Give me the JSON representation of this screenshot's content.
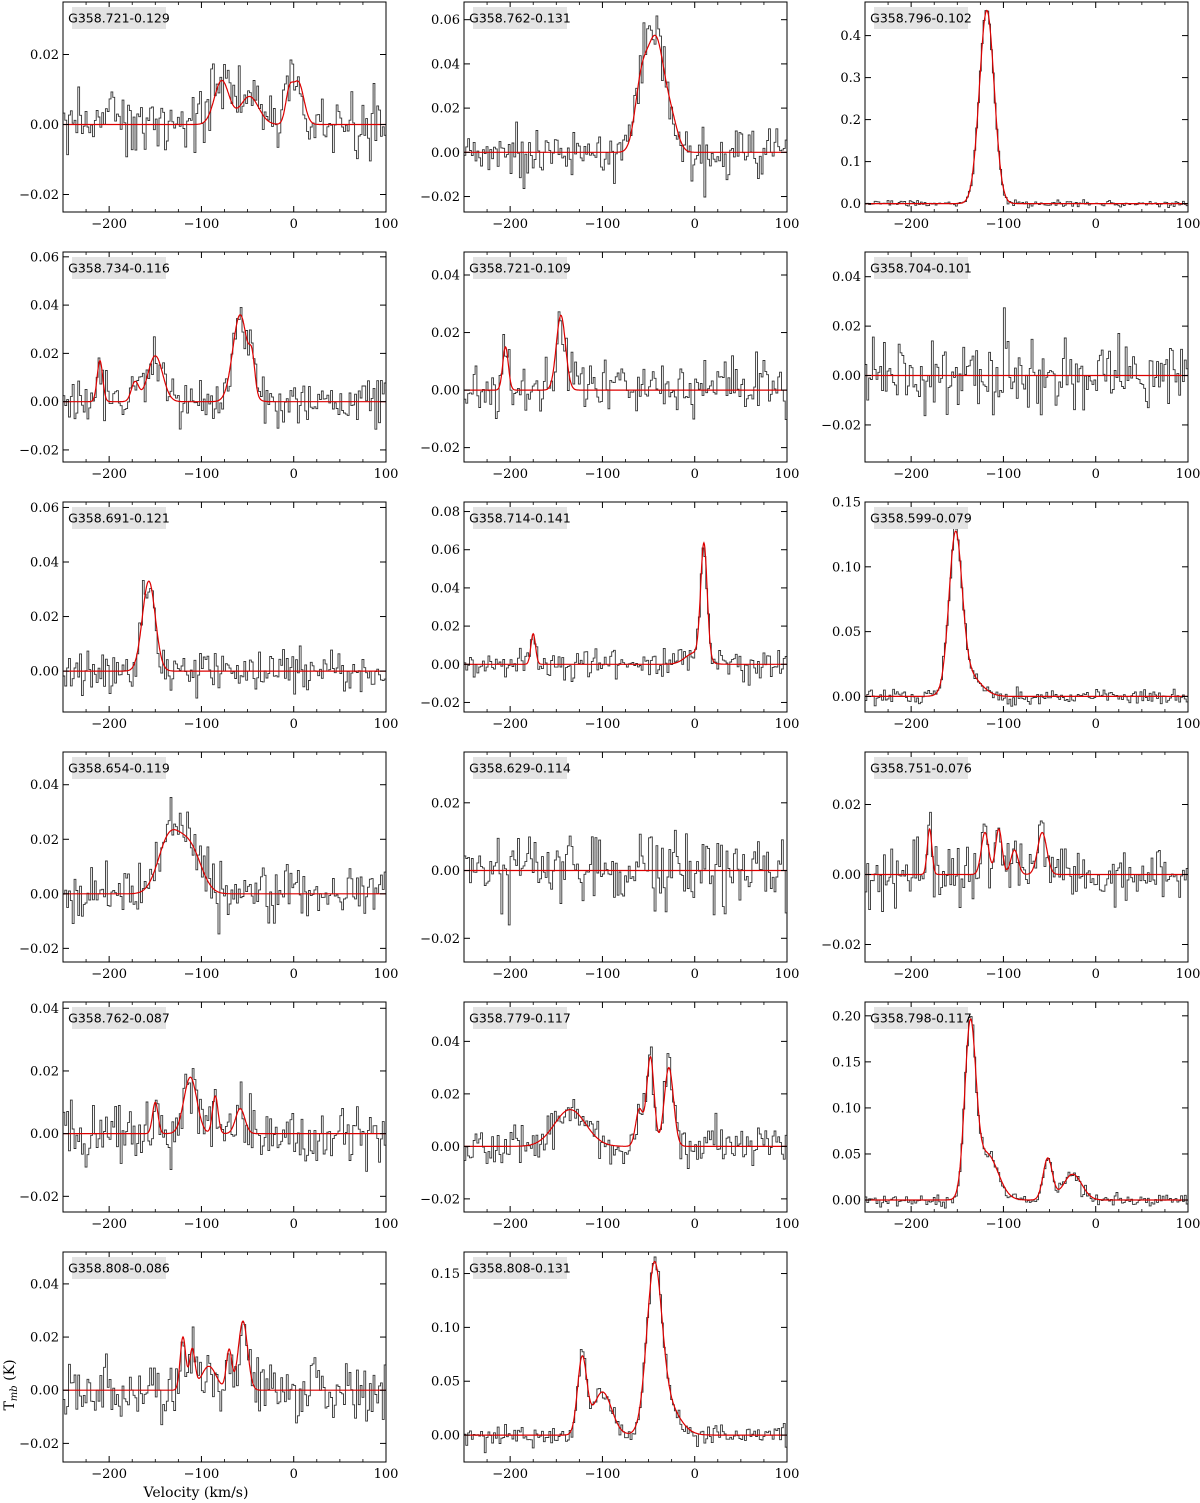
{
  "figure": {
    "xlabel": "Velocity (km/s)",
    "ylabel": "T",
    "ylabel_sub": "mb",
    "ylabel_unit": " (K)",
    "colors": {
      "observed": "#333333",
      "fit": "#dd0000",
      "label_bg": "#e3e3e3"
    }
  },
  "chart_data": [
    {
      "type": "line",
      "title": "G358.721-0.129",
      "xlim": [
        -250,
        100
      ],
      "ylim": [
        -0.025,
        0.035
      ],
      "xticks": [
        -200,
        -100,
        0,
        100
      ],
      "yticks": [
        -0.02,
        0.0,
        0.02
      ],
      "ytick_labels": [
        "−0.02",
        "0.00",
        "0.02"
      ],
      "noise": 0.0055,
      "seed": 1,
      "fit_components": [
        [
          -78,
          0.0125,
          8
        ],
        [
          -48,
          0.008,
          10
        ],
        [
          -5,
          0.008,
          4
        ],
        [
          5,
          0.012,
          6
        ]
      ]
    },
    {
      "type": "line",
      "title": "G358.762-0.131",
      "xlim": [
        -250,
        100
      ],
      "ylim": [
        -0.027,
        0.068
      ],
      "xticks": [
        -200,
        -100,
        0,
        100
      ],
      "yticks": [
        -0.02,
        0.0,
        0.02,
        0.04,
        0.06
      ],
      "ytick_labels": [
        "−0.02",
        "0.00",
        "0.02",
        "0.04",
        "0.06"
      ],
      "noise": 0.007,
      "seed": 2,
      "fit_components": [
        [
          -58,
          0.028,
          7
        ],
        [
          -42,
          0.05,
          9
        ],
        [
          -25,
          0.012,
          7
        ]
      ]
    },
    {
      "type": "line",
      "title": "G358.796-0.102",
      "xlim": [
        -250,
        100
      ],
      "ylim": [
        -0.02,
        0.48
      ],
      "xticks": [
        -200,
        -100,
        0,
        100
      ],
      "yticks": [
        0.0,
        0.1,
        0.2,
        0.3,
        0.4
      ],
      "ytick_labels": [
        "0.0",
        "0.1",
        "0.2",
        "0.3",
        "0.4"
      ],
      "noise": 0.005,
      "seed": 3,
      "fit_components": [
        [
          -118,
          0.46,
          8
        ]
      ]
    },
    {
      "type": "line",
      "title": "G358.734-0.116",
      "xlim": [
        -250,
        100
      ],
      "ylim": [
        -0.025,
        0.062
      ],
      "xticks": [
        -200,
        -100,
        0,
        100
      ],
      "yticks": [
        -0.02,
        0.0,
        0.02,
        0.04,
        0.06
      ],
      "ytick_labels": [
        "−0.02",
        "0.00",
        "0.02",
        "0.04",
        "0.06"
      ],
      "noise": 0.006,
      "seed": 4,
      "fit_components": [
        [
          -210,
          0.017,
          3
        ],
        [
          -172,
          0.008,
          4
        ],
        [
          -150,
          0.019,
          8
        ],
        [
          -58,
          0.036,
          8
        ],
        [
          -45,
          0.012,
          3
        ]
      ]
    },
    {
      "type": "line",
      "title": "G358.721-0.109",
      "xlim": [
        -250,
        100
      ],
      "ylim": [
        -0.025,
        0.048
      ],
      "xticks": [
        -200,
        -100,
        0,
        100
      ],
      "yticks": [
        -0.02,
        0.0,
        0.02,
        0.04
      ],
      "ytick_labels": [
        "−0.02",
        "0.00",
        "0.02",
        "0.04"
      ],
      "noise": 0.006,
      "seed": 5,
      "fit_components": [
        [
          -205,
          0.015,
          3
        ],
        [
          -145,
          0.026,
          5
        ]
      ]
    },
    {
      "type": "line",
      "title": "G358.704-0.101",
      "xlim": [
        -250,
        100
      ],
      "ylim": [
        -0.035,
        0.05
      ],
      "xticks": [
        -200,
        -100,
        0,
        100
      ],
      "yticks": [
        -0.02,
        0.0,
        0.02,
        0.04
      ],
      "ytick_labels": [
        "−0.02",
        "0.00",
        "0.02",
        "0.04"
      ],
      "noise": 0.009,
      "seed": 6,
      "fit_components": []
    },
    {
      "type": "line",
      "title": "G358.691-0.121",
      "xlim": [
        -250,
        100
      ],
      "ylim": [
        -0.015,
        0.062
      ],
      "xticks": [
        -200,
        -100,
        0,
        100
      ],
      "yticks": [
        0.0,
        0.02,
        0.04,
        0.06
      ],
      "ytick_labels": [
        "0.00",
        "0.02",
        "0.04",
        "0.06"
      ],
      "noise": 0.005,
      "seed": 7,
      "fit_components": [
        [
          -157,
          0.033,
          7
        ]
      ]
    },
    {
      "type": "line",
      "title": "G358.714-0.141",
      "xlim": [
        -250,
        100
      ],
      "ylim": [
        -0.025,
        0.085
      ],
      "xticks": [
        -200,
        -100,
        0,
        100
      ],
      "yticks": [
        -0.02,
        0.0,
        0.02,
        0.04,
        0.06,
        0.08
      ],
      "ytick_labels": [
        "−0.02",
        "0.00",
        "0.02",
        "0.04",
        "0.06",
        "0.08"
      ],
      "noise": 0.005,
      "seed": 8,
      "fit_components": [
        [
          -175,
          0.016,
          2.5
        ],
        [
          10,
          0.06,
          3.5
        ],
        [
          0,
          0.006,
          10
        ]
      ]
    },
    {
      "type": "line",
      "title": "G358.599-0.079",
      "xlim": [
        -250,
        100
      ],
      "ylim": [
        -0.012,
        0.15
      ],
      "xticks": [
        -200,
        -100,
        0,
        100
      ],
      "yticks": [
        0.0,
        0.05,
        0.1,
        0.15
      ],
      "ytick_labels": [
        "0.00",
        "0.05",
        "0.10",
        "0.15"
      ],
      "noise": 0.004,
      "seed": 9,
      "fit_components": [
        [
          -152,
          0.115,
          7
        ],
        [
          -140,
          0.018,
          14
        ]
      ]
    },
    {
      "type": "line",
      "title": "G358.654-0.119",
      "xlim": [
        -250,
        100
      ],
      "ylim": [
        -0.025,
        0.052
      ],
      "xticks": [
        -200,
        -100,
        0,
        100
      ],
      "yticks": [
        -0.02,
        0.0,
        0.02,
        0.04
      ],
      "ytick_labels": [
        "−0.02",
        "0.00",
        "0.02",
        "0.04"
      ],
      "noise": 0.006,
      "seed": 10,
      "fit_components": [
        [
          -135,
          0.02,
          12
        ],
        [
          -112,
          0.016,
          12
        ]
      ]
    },
    {
      "type": "line",
      "title": "G358.629-0.114",
      "xlim": [
        -250,
        100
      ],
      "ylim": [
        -0.027,
        0.035
      ],
      "xticks": [
        -200,
        -100,
        0,
        100
      ],
      "yticks": [
        -0.02,
        0.0,
        0.02
      ],
      "ytick_labels": [
        "−0.02",
        "0.00",
        "0.02"
      ],
      "noise": 0.007,
      "seed": 11,
      "fit_components": []
    },
    {
      "type": "line",
      "title": "G358.751-0.076",
      "xlim": [
        -250,
        100
      ],
      "ylim": [
        -0.025,
        0.035
      ],
      "xticks": [
        -200,
        -100,
        0,
        100
      ],
      "yticks": [
        -0.02,
        0.0,
        0.02
      ],
      "ytick_labels": [
        "−0.02",
        "0.00",
        "0.02"
      ],
      "noise": 0.005,
      "seed": 12,
      "fit_components": [
        [
          -180,
          0.013,
          2.5
        ],
        [
          -120,
          0.012,
          4
        ],
        [
          -105,
          0.013,
          3.5
        ],
        [
          -88,
          0.007,
          4
        ],
        [
          -58,
          0.012,
          5
        ]
      ]
    },
    {
      "type": "line",
      "title": "G358.762-0.087",
      "xlim": [
        -250,
        100
      ],
      "ylim": [
        -0.025,
        0.042
      ],
      "xticks": [
        -200,
        -100,
        0,
        100
      ],
      "yticks": [
        -0.02,
        0.0,
        0.02,
        0.04
      ],
      "ytick_labels": [
        "−0.02",
        "0.00",
        "0.02",
        "0.04"
      ],
      "noise": 0.006,
      "seed": 13,
      "fit_components": [
        [
          -150,
          0.01,
          3
        ],
        [
          -112,
          0.018,
          7
        ],
        [
          -85,
          0.012,
          3
        ],
        [
          -58,
          0.008,
          5
        ]
      ]
    },
    {
      "type": "line",
      "title": "G358.779-0.117",
      "xlim": [
        -250,
        100
      ],
      "ylim": [
        -0.025,
        0.055
      ],
      "xticks": [
        -200,
        -100,
        0,
        100
      ],
      "yticks": [
        -0.02,
        0.0,
        0.02,
        0.04
      ],
      "ytick_labels": [
        "−0.02",
        "0.00",
        "0.02",
        "0.04"
      ],
      "noise": 0.005,
      "seed": 14,
      "fit_components": [
        [
          -135,
          0.014,
          17
        ],
        [
          -60,
          0.014,
          4
        ],
        [
          -48,
          0.034,
          4
        ],
        [
          -28,
          0.03,
          5
        ]
      ]
    },
    {
      "type": "line",
      "title": "G358.798-0.117",
      "xlim": [
        -250,
        100
      ],
      "ylim": [
        -0.013,
        0.215
      ],
      "xticks": [
        -200,
        -100,
        0,
        100
      ],
      "yticks": [
        0.0,
        0.05,
        0.1,
        0.15,
        0.2
      ],
      "ytick_labels": [
        "0.00",
        "0.05",
        "0.10",
        "0.15",
        "0.20"
      ],
      "noise": 0.004,
      "seed": 15,
      "fit_components": [
        [
          -136,
          0.18,
          6
        ],
        [
          -118,
          0.05,
          12
        ],
        [
          -52,
          0.045,
          5
        ],
        [
          -25,
          0.028,
          10
        ]
      ]
    },
    {
      "type": "line",
      "title": "G358.808-0.086",
      "xlim": [
        -250,
        100
      ],
      "ylim": [
        -0.027,
        0.052
      ],
      "xticks": [
        -200,
        -100,
        0,
        100
      ],
      "yticks": [
        -0.02,
        0.0,
        0.02,
        0.04
      ],
      "ytick_labels": [
        "−0.02",
        "0.00",
        "0.02",
        "0.04"
      ],
      "noise": 0.007,
      "seed": 16,
      "fit_components": [
        [
          -120,
          0.02,
          3
        ],
        [
          -110,
          0.015,
          3
        ],
        [
          -92,
          0.009,
          8
        ],
        [
          -70,
          0.015,
          3
        ],
        [
          -55,
          0.026,
          5
        ]
      ]
    },
    {
      "type": "line",
      "title": "G358.808-0.131",
      "xlim": [
        -250,
        100
      ],
      "ylim": [
        -0.025,
        0.17
      ],
      "xticks": [
        -200,
        -100,
        0,
        100
      ],
      "yticks": [
        0.0,
        0.05,
        0.1,
        0.15
      ],
      "ytick_labels": [
        "0.00",
        "0.05",
        "0.10",
        "0.15"
      ],
      "noise": 0.006,
      "seed": 17,
      "fit_components": [
        [
          -122,
          0.07,
          5
        ],
        [
          -100,
          0.04,
          10
        ],
        [
          -44,
          0.14,
          8
        ],
        [
          -32,
          0.03,
          14
        ]
      ]
    }
  ]
}
